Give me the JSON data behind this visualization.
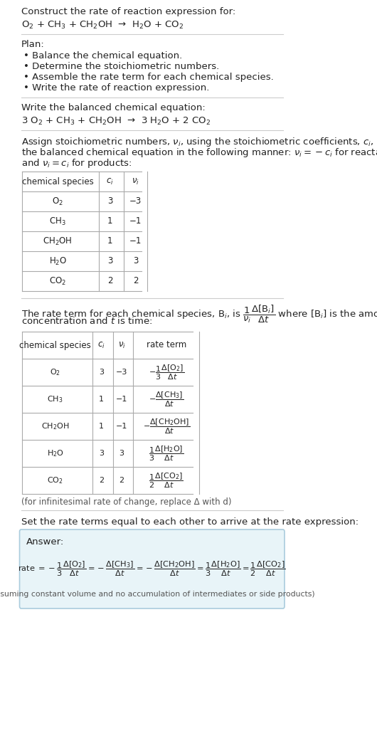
{
  "bg_color": "#ffffff",
  "title_line1": "Construct the rate of reaction expression for:",
  "reaction_unbalanced": "O$_2$ + CH$_3$ + CH$_2$OH  →  H$_2$O + CO$_2$",
  "plan_header": "Plan:",
  "plan_bullets": [
    "• Balance the chemical equation.",
    "• Determine the stoichiometric numbers.",
    "• Assemble the rate term for each chemical species.",
    "• Write the rate of reaction expression."
  ],
  "balanced_header": "Write the balanced chemical equation:",
  "reaction_balanced": "3 O$_2$ + CH$_3$ + CH$_2$OH  →  3 H$_2$O + 2 CO$_2$",
  "stoich_intro": "Assign stoichiometric numbers, $\\nu_i$, using the stoichiometric coefficients, $c_i$, from\nthe balanced chemical equation in the following manner: $\\nu_i = -c_i$ for reactants\nand $\\nu_i = c_i$ for products:",
  "table1_headers": [
    "chemical species",
    "$c_i$",
    "$\\nu_i$"
  ],
  "table1_data": [
    [
      "O$_2$",
      "3",
      "−3"
    ],
    [
      "CH$_3$",
      "1",
      "−1"
    ],
    [
      "CH$_2$OH",
      "1",
      "−1"
    ],
    [
      "H$_2$O",
      "3",
      "3"
    ],
    [
      "CO$_2$",
      "2",
      "2"
    ]
  ],
  "rate_term_intro": "The rate term for each chemical species, B$_i$, is $\\dfrac{1}{\\nu_i}\\dfrac{\\Delta[\\mathrm{B}_i]}{\\Delta t}$ where [B$_i$] is the amount\nconcentration and $t$ is time:",
  "table2_headers": [
    "chemical species",
    "$c_i$",
    "$\\nu_i$",
    "rate term"
  ],
  "table2_data": [
    [
      "O$_2$",
      "3",
      "−3",
      "$-\\dfrac{1}{3}\\dfrac{\\Delta[\\mathrm{O_2}]}{\\Delta t}$"
    ],
    [
      "CH$_3$",
      "1",
      "−1",
      "$-\\dfrac{\\Delta[\\mathrm{CH_3}]}{\\Delta t}$"
    ],
    [
      "CH$_2$OH",
      "1",
      "−1",
      "$-\\dfrac{\\Delta[\\mathrm{CH_2OH}]}{\\Delta t}$"
    ],
    [
      "H$_2$O",
      "3",
      "3",
      "$\\dfrac{1}{3}\\dfrac{\\Delta[\\mathrm{H_2O}]}{\\Delta t}$"
    ],
    [
      "CO$_2$",
      "2",
      "2",
      "$\\dfrac{1}{2}\\dfrac{\\Delta[\\mathrm{CO_2}]}{\\Delta t}$"
    ]
  ],
  "infinitesimal_note": "(for infinitesimal rate of change, replace Δ with d)",
  "set_equal_text": "Set the rate terms equal to each other to arrive at the rate expression:",
  "answer_label": "Answer:",
  "answer_box_color": "#e8f4f8",
  "answer_box_border": "#aaccdd",
  "rate_expression": "rate $= -\\dfrac{1}{3}\\dfrac{\\Delta[\\mathrm{O_2}]}{\\Delta t} = -\\dfrac{\\Delta[\\mathrm{CH_3}]}{\\Delta t} = -\\dfrac{\\Delta[\\mathrm{CH_2OH}]}{\\Delta t} = \\dfrac{1}{3}\\dfrac{\\Delta[\\mathrm{H_2O}]}{\\Delta t} = \\dfrac{1}{2}\\dfrac{\\Delta[\\mathrm{CO_2}]}{\\Delta t}$",
  "assuming_note": "(assuming constant volume and no accumulation of intermediates or side products)",
  "separator_color": "#cccccc",
  "table_border_color": "#aaaaaa",
  "text_color": "#222222",
  "body_fontsize": 9.5,
  "small_fontsize": 8.5
}
